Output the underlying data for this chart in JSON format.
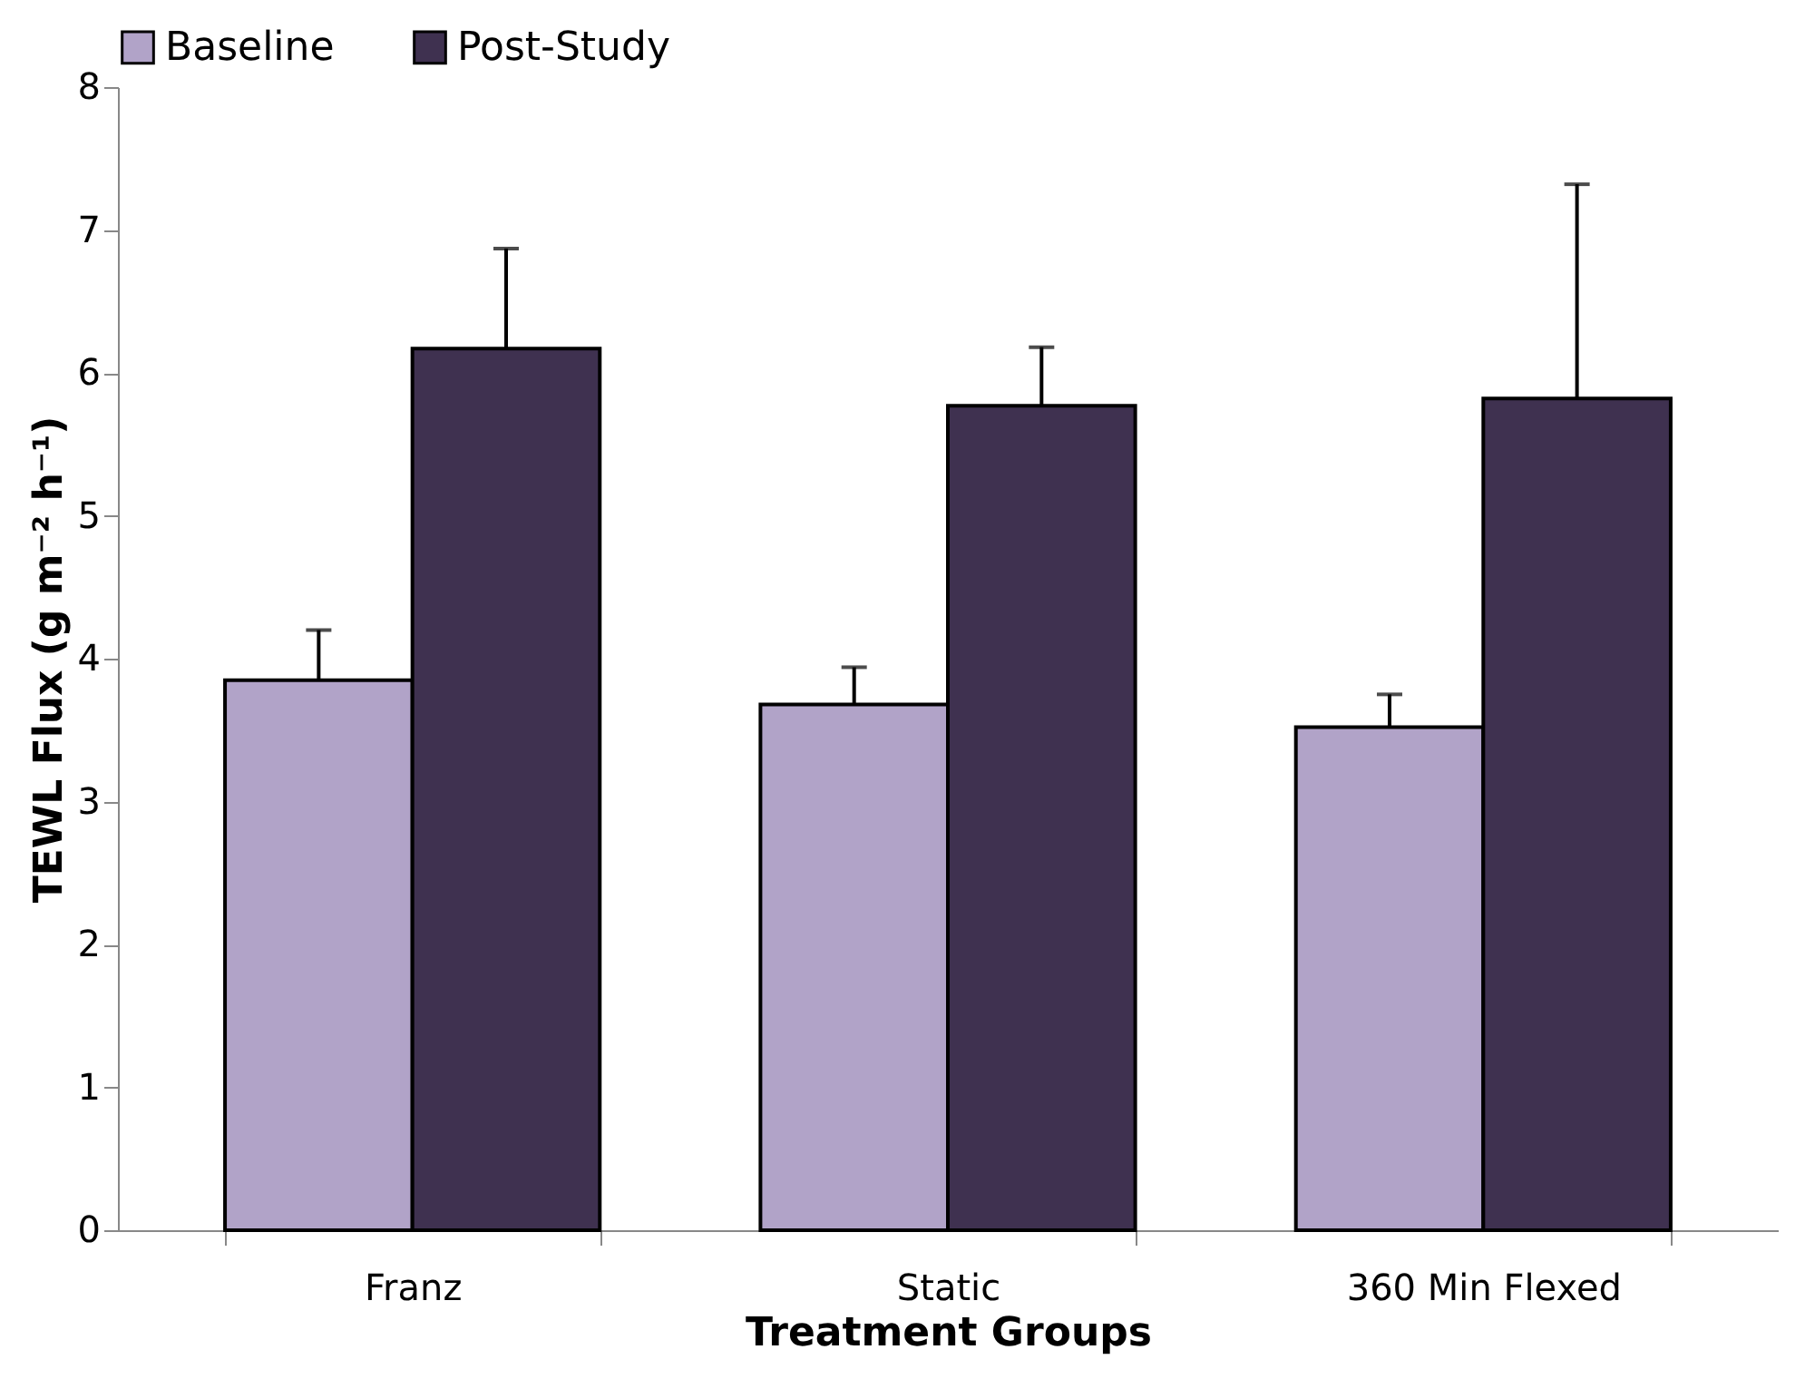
{
  "chart_data": {
    "type": "bar",
    "xlabel": "Treatment Groups",
    "ylabel": "TEWL Flux (g m⁻² h⁻¹)",
    "categories": [
      "Franz",
      "Static",
      "360 Min Flexed"
    ],
    "series": [
      {
        "name": "Baseline",
        "color": "#b1a3c8",
        "values": [
          3.85,
          3.68,
          3.52
        ],
        "errors": [
          [
            3.85,
            4.2
          ],
          [
            3.68,
            3.94
          ],
          [
            3.52,
            3.75
          ]
        ]
      },
      {
        "name": "Post-Study",
        "color": "#3f3150",
        "values": [
          6.17,
          5.77,
          5.82
        ],
        "errors": [
          [
            6.17,
            6.87
          ],
          [
            5.77,
            6.18
          ],
          [
            5.82,
            7.32
          ]
        ]
      }
    ],
    "ylim": [
      0,
      8
    ],
    "yticks": [
      0,
      1,
      2,
      3,
      4,
      5,
      6,
      7,
      8
    ],
    "legend": "top",
    "grid": false
  }
}
